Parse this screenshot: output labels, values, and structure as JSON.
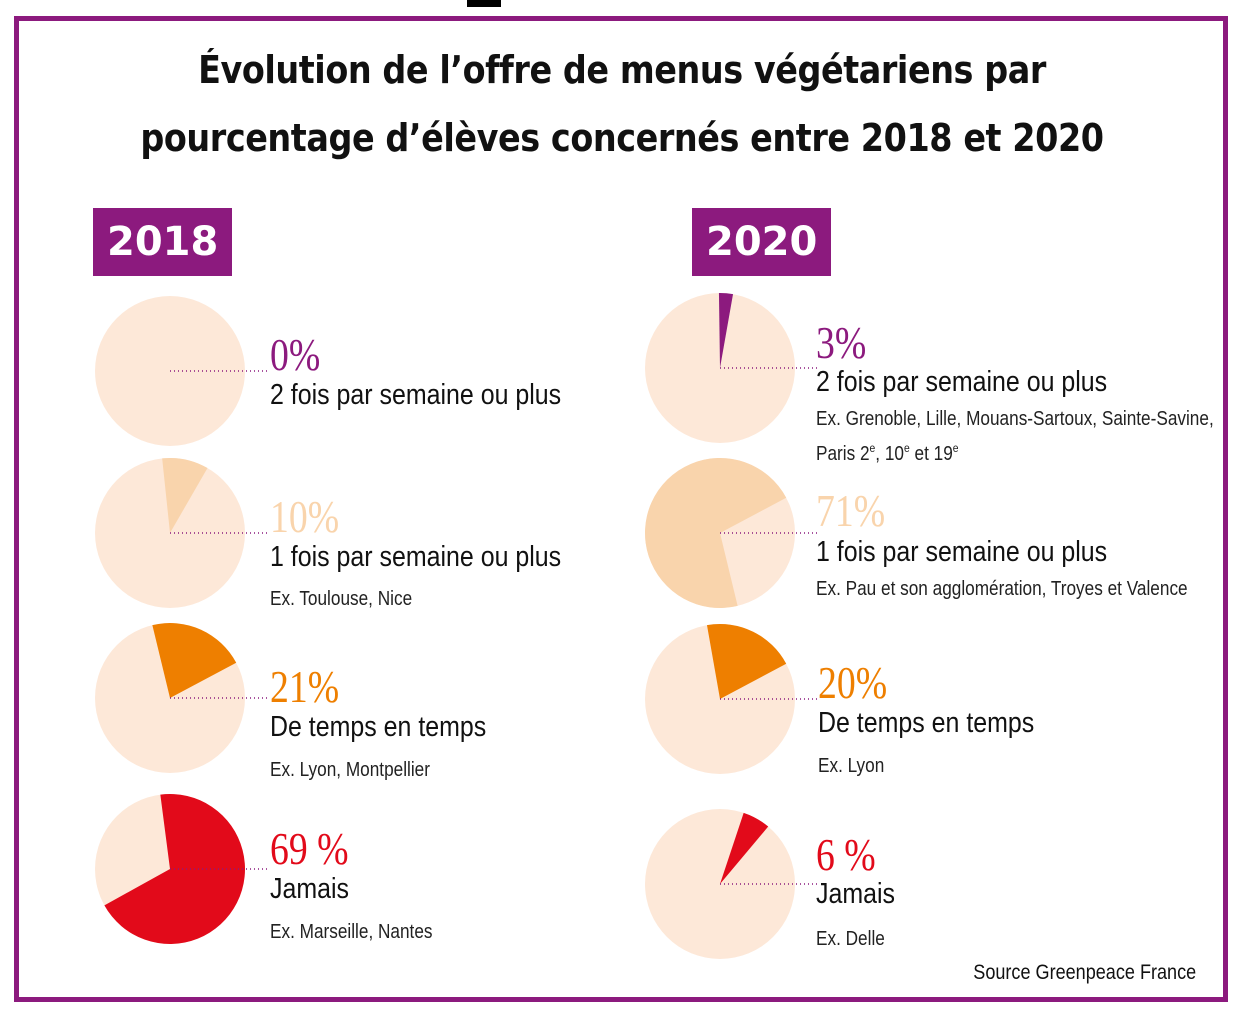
{
  "title_line1": "Évolution de l’offre de menus végétariens par",
  "title_line2": "pourcentage d’élèves concernés entre 2018 et 2020",
  "source": "Source Greenpeace France",
  "colors": {
    "frame": "#8c1a7e",
    "pie_base": "#fde8d8",
    "categories": [
      "#8c1a7e",
      "#f9d4ac",
      "#ee7f00",
      "#e20a1a"
    ]
  },
  "chart_data": [
    {
      "type": "pie",
      "title": "2018",
      "categories": [
        "2 fois par semaine ou plus",
        "1 fois par semaine ou plus",
        "De temps en temps",
        "Jamais"
      ],
      "values": [
        0,
        10,
        21,
        69
      ],
      "labels": [
        "0%",
        "10%",
        "21%",
        "69 %"
      ],
      "examples": [
        "",
        "Ex. Toulouse, Nice",
        "Ex. Lyon, Montpellier",
        "Ex. Marseille, Nantes"
      ]
    },
    {
      "type": "pie",
      "title": "2020",
      "categories": [
        "2 fois par semaine ou plus",
        "1 fois par semaine ou plus",
        "De temps en temps",
        "Jamais"
      ],
      "values": [
        3,
        71,
        20,
        6
      ],
      "labels": [
        "3%",
        "71%",
        "20%",
        "6 %"
      ],
      "examples": [
        "Ex. Grenoble, Lille, Mouans-Sartoux,  Sainte-Savine,",
        "Ex. Pau et son agglomération, Troyes et Valence",
        "Ex. Lyon",
        "Ex. Delle"
      ],
      "example_extra": {
        "prefix": "Paris 2",
        "sup1": "e",
        "mid": ", 10",
        "sup2": "e",
        "mid2": " et 19",
        "sup3": "e"
      }
    }
  ]
}
